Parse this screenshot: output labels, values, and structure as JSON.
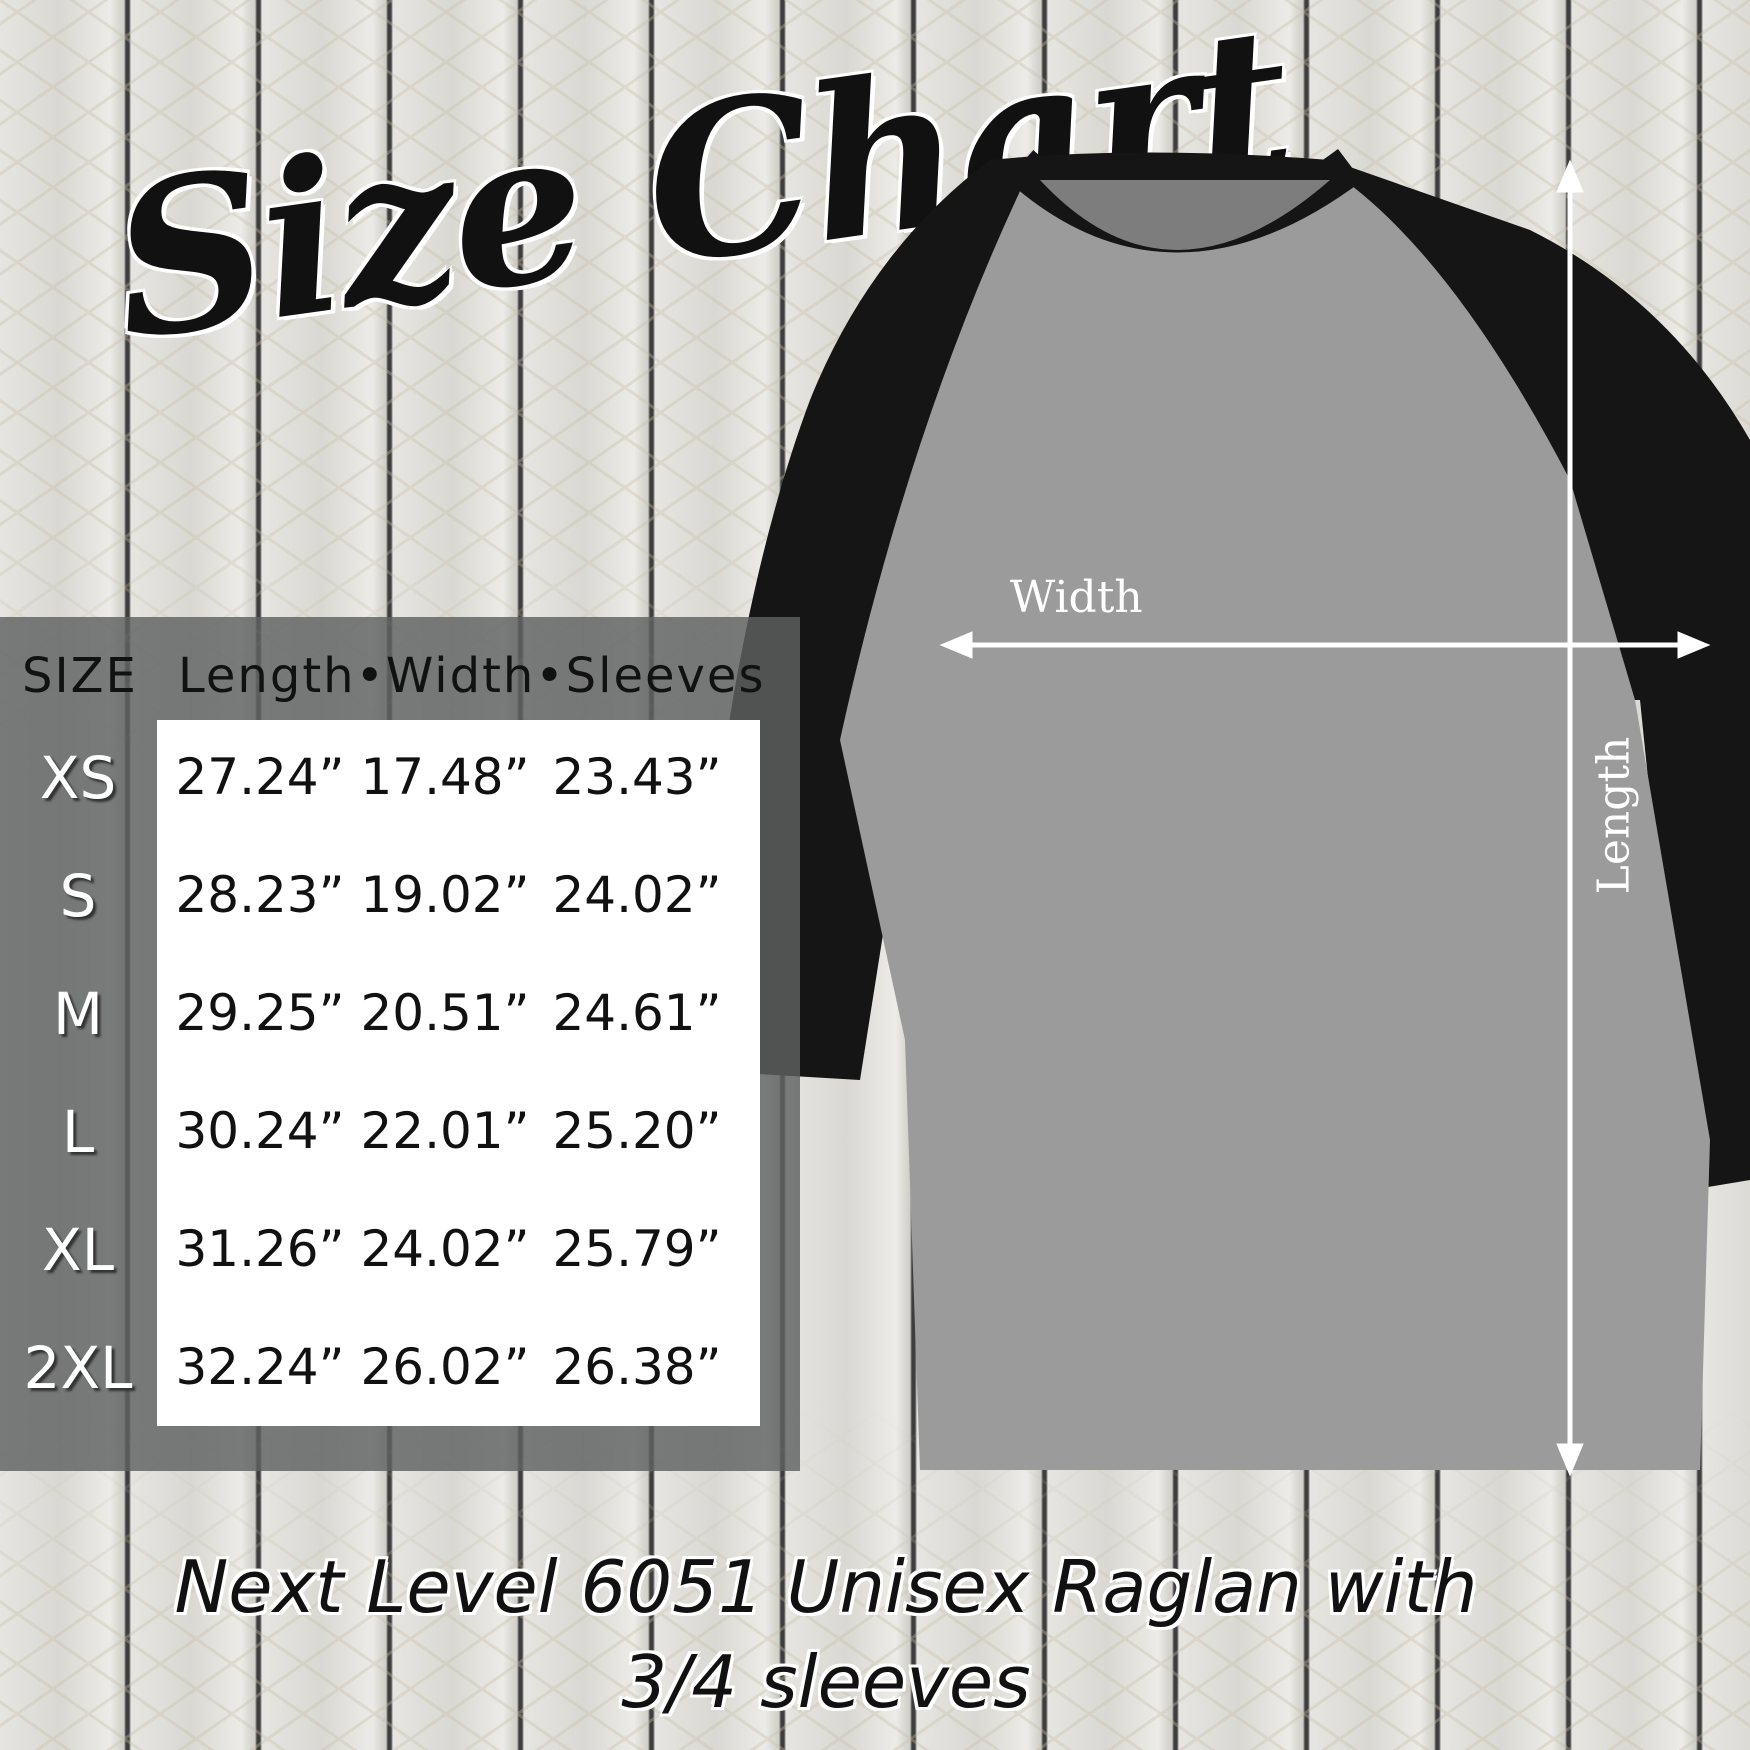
{
  "title": "Size Chart",
  "table": {
    "size_header": "SIZE",
    "columns_header": "Length•Width•Sleeves",
    "rows": [
      {
        "size": "XS",
        "length": "27.24”",
        "width": "17.48”",
        "sleeves": "23.43”"
      },
      {
        "size": "S",
        "length": "28.23”",
        "width": "19.02”",
        "sleeves": "24.02”"
      },
      {
        "size": "M",
        "length": "29.25”",
        "width": "20.51”",
        "sleeves": "24.61”"
      },
      {
        "size": "L",
        "length": "30.24”",
        "width": "22.01”",
        "sleeves": "25.20”"
      },
      {
        "size": "XL",
        "length": "31.26”",
        "width": "24.02”",
        "sleeves": "25.79”"
      },
      {
        "size": "2XL",
        "length": "32.24”",
        "width": "26.02”",
        "sleeves": "26.38”"
      }
    ]
  },
  "diagram": {
    "width_label": "Width",
    "length_label": "Length"
  },
  "caption": {
    "line1": "Next Level 6051 Unisex Raglan with",
    "line2": "3/4 sleeves"
  },
  "colors": {
    "body": "#9b9b9b",
    "sleeves": "#151515",
    "panel": "#5f6262"
  }
}
